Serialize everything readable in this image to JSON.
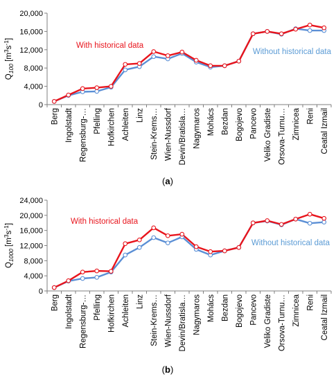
{
  "chart_data": [
    {
      "type": "line",
      "panel_label": "a",
      "ylabel": {
        "base": "Q",
        "sub": "100",
        "units": " [m",
        "sup1": "3",
        "mid": "s",
        "sup2": "-1",
        "end": "]"
      },
      "ylim": [
        0,
        20000
      ],
      "yticks": [
        0,
        4000,
        8000,
        12000,
        16000,
        20000
      ],
      "ytick_labels": [
        "0",
        "4,000",
        "8,000",
        "12,000",
        "16,000",
        "20,000"
      ],
      "grid": false,
      "categories": [
        "Berg",
        "Ingolstadt",
        "Regensburg-…",
        "Pfelling",
        "Hofkirchen",
        "Achleiten",
        "Linz",
        "Stein-Krems…",
        "Wien-Nussdorf",
        "Devin/Bratisla…",
        "Nagymaros",
        "Mohács",
        "Bezdan",
        "Bogojevo",
        "Pancevo",
        "Veliko Gradiste",
        "Orsova-Turnu…",
        "Zimnicea",
        "Reni",
        "Ceatal Izmail"
      ],
      "series": [
        {
          "name": "With historical data",
          "color": "#e8141c",
          "annotation_color": "#e8141c",
          "values": [
            700,
            2100,
            3500,
            3700,
            4000,
            8800,
            9000,
            11600,
            10700,
            11500,
            9700,
            8500,
            8500,
            9500,
            15500,
            16000,
            15500,
            16500,
            17400,
            16800
          ]
        },
        {
          "name": "Without historical data",
          "color": "#5b8fd5",
          "annotation_color": "#5b9bd5",
          "values": [
            700,
            2000,
            2800,
            2900,
            3800,
            7600,
            8300,
            10500,
            10000,
            11200,
            9300,
            8200,
            8500,
            9500,
            15500,
            16000,
            15400,
            16600,
            16200,
            16200
          ]
        }
      ]
    },
    {
      "type": "line",
      "panel_label": "b",
      "ylabel": {
        "base": "Q",
        "sub": "1000",
        "units": " [m",
        "sup1": "3",
        "mid": "s",
        "sup2": "-1",
        "end": "]"
      },
      "ylim": [
        0,
        24000
      ],
      "yticks": [
        0,
        4000,
        8000,
        12000,
        16000,
        20000,
        24000
      ],
      "ytick_labels": [
        "0",
        "4,000",
        "8,000",
        "12,000",
        "16,000",
        "20,000",
        "24,000"
      ],
      "grid": false,
      "categories": [
        "Berg",
        "Ingolstadt",
        "Regensburg-…",
        "Pfelling",
        "Hofkirchen",
        "Achleiten",
        "Linz",
        "Stein-Krems…",
        "Wien-Nussdorf",
        "Devin/Bratisla…",
        "Nagymaros",
        "Mohács",
        "Bezdan",
        "Bogojevo",
        "Pancevo",
        "Veliko Gradiste",
        "Orsova-Turnu…",
        "Zimnicea",
        "Reni",
        "Ceatal Izmail"
      ],
      "series": [
        {
          "name": "With historical data",
          "color": "#e8141c",
          "annotation_color": "#e8141c",
          "values": [
            900,
            2700,
            5000,
            5300,
            5200,
            12500,
            13500,
            16700,
            14600,
            15000,
            11700,
            10400,
            10600,
            11500,
            18000,
            18600,
            17600,
            19000,
            20300,
            19200
          ]
        },
        {
          "name": "Without historical data",
          "color": "#5b8fd5",
          "annotation_color": "#5b9bd5",
          "values": [
            900,
            2600,
            3300,
            3600,
            5000,
            9500,
            11500,
            14100,
            12700,
            14300,
            11000,
            9500,
            10600,
            11500,
            18000,
            18500,
            17500,
            19000,
            17900,
            18200
          ]
        }
      ]
    }
  ]
}
